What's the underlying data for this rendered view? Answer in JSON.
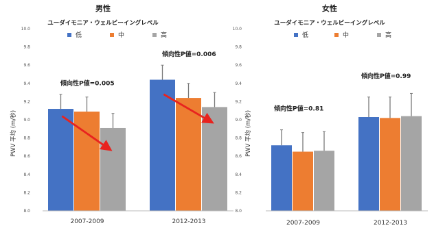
{
  "chart_data": [
    {
      "type": "bar",
      "title": "男性",
      "legend_title": "ユーダイモニア・ウェルビーイングレベル",
      "legend_placement": "top",
      "ylabel": "PWV 平均 (m/秒)",
      "ylim": [
        0.0,
        10.0
      ],
      "yticks": [
        "10.0",
        "9.8",
        "9.6",
        "9.4",
        "9.2",
        "9.0",
        "8.8",
        "8.6",
        "8.4",
        "8.2",
        "8.0"
      ],
      "yticks_data": [
        10.0,
        9.8,
        9.6,
        9.4,
        9.2,
        9.0,
        8.8,
        8.6,
        8.4,
        8.2,
        8.0
      ],
      "y_axis_min": 8.0,
      "y_axis_max": 10.0,
      "grid": false,
      "categories": [
        "2007-2009",
        "2012-2013"
      ],
      "series": [
        {
          "name": "低",
          "color": "#4472C4",
          "values": [
            9.12,
            9.44
          ],
          "errors": [
            0.16,
            0.16
          ]
        },
        {
          "name": "中",
          "color": "#ED7D31",
          "values": [
            9.09,
            9.24
          ],
          "errors": [
            0.16,
            0.16
          ]
        },
        {
          "name": "高",
          "color": "#A5A5A5",
          "values": [
            8.91,
            9.14
          ],
          "errors": [
            0.16,
            0.16
          ]
        }
      ],
      "annotations": [
        {
          "text": "傾向性P値=0.005",
          "category_index": 0,
          "y_value": 9.38
        },
        {
          "text": "傾向性P値=0.006",
          "category_index": 1,
          "y_value": 9.7
        }
      ],
      "trend_arrows": [
        {
          "from_category": 0,
          "from_series": 0,
          "from_y": 9.04,
          "to_series": 2,
          "to_y": 8.68,
          "color": "#E8231F"
        },
        {
          "from_category": 1,
          "from_series": 0,
          "from_y": 9.28,
          "to_series": 2,
          "to_y": 8.98,
          "color": "#E8231F"
        }
      ]
    },
    {
      "type": "bar",
      "title": "女性",
      "legend_title": "ユーダイモニア・ウェルビーイングレベル",
      "legend_placement": "top",
      "ylabel": "PWV 平均 (m/秒)",
      "ylim": [
        8.0,
        10.0
      ],
      "yticks": [
        "10.0",
        "9.8",
        "9.6",
        "9.4",
        "9.2",
        "9.0",
        "8.8",
        "8.6",
        "8.4",
        "8.2",
        "8.0"
      ],
      "yticks_data": [
        10.0,
        9.8,
        9.6,
        9.4,
        9.2,
        9.0,
        8.8,
        8.6,
        8.4,
        8.2,
        8.0
      ],
      "grid": false,
      "categories": [
        "2007-2009",
        "2012-2013"
      ],
      "series": [
        {
          "name": "低",
          "color": "#4472C4",
          "values": [
            8.72,
            9.03
          ],
          "errors": [
            0.17,
            0.22
          ]
        },
        {
          "name": "中",
          "color": "#ED7D31",
          "values": [
            8.65,
            9.02
          ],
          "errors": [
            0.21,
            0.23
          ]
        },
        {
          "name": "高",
          "color": "#A5A5A5",
          "values": [
            8.66,
            9.04
          ],
          "errors": [
            0.21,
            0.25
          ]
        }
      ],
      "annotations": [
        {
          "text": "傾向性P値=0.81",
          "category_index": 0,
          "y_value": 9.1
        },
        {
          "text": "傾向性P値=0.99",
          "category_index": 1,
          "y_value": 9.46
        }
      ]
    }
  ]
}
